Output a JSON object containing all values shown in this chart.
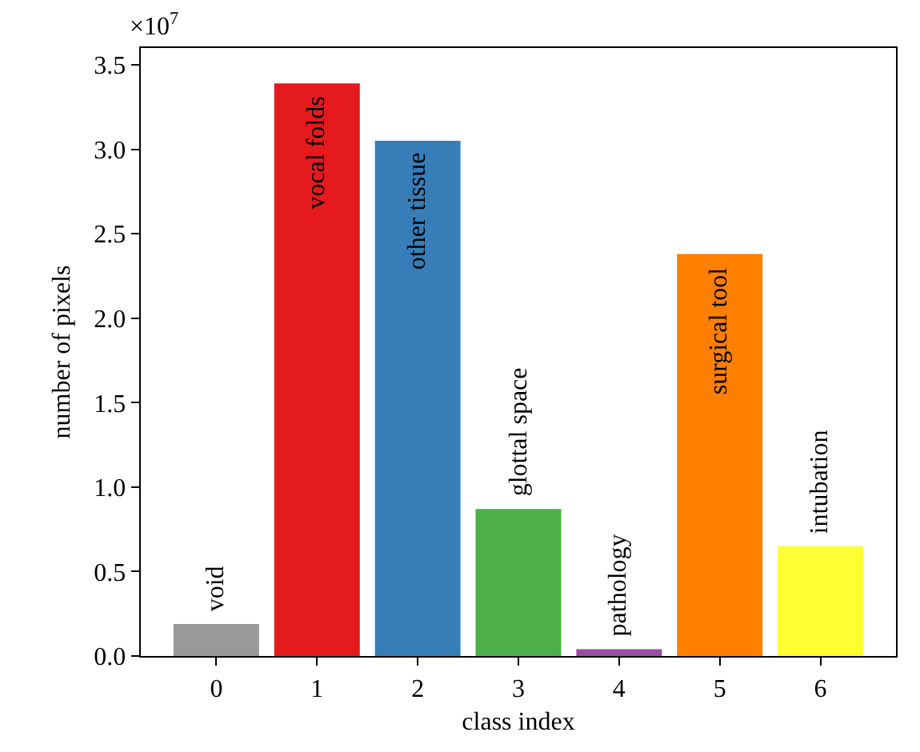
{
  "chart_data": {
    "type": "bar",
    "xlabel": "class index",
    "ylabel": "number of pixels",
    "categories": [
      "0",
      "1",
      "2",
      "3",
      "4",
      "5",
      "6"
    ],
    "values": [
      0.19,
      3.39,
      3.05,
      0.87,
      0.04,
      2.38,
      0.65
    ],
    "colors": [
      "#999999",
      "#e41a1c",
      "#377eb8",
      "#4daf4a",
      "#984ea3",
      "#ff7f00",
      "#ffff33"
    ],
    "ylim": [
      0,
      3.6
    ],
    "yticks": [
      {
        "value": 0,
        "label": "0.0"
      },
      {
        "value": 0.5,
        "label": "0.5"
      },
      {
        "value": 1,
        "label": "1.0"
      },
      {
        "value": 1.5,
        "label": "1.5"
      },
      {
        "value": 2,
        "label": "2.0"
      },
      {
        "value": 2.5,
        "label": "2.5"
      },
      {
        "value": 3,
        "label": "3.0"
      },
      {
        "value": 3.5,
        "label": "3.5"
      }
    ],
    "grid": false,
    "annotations": [
      "×10$^{7}$",
      "void",
      "vocal folds",
      "other tissue",
      "glottal space",
      "pathology",
      "surgical tool",
      "intubation"
    ]
  }
}
